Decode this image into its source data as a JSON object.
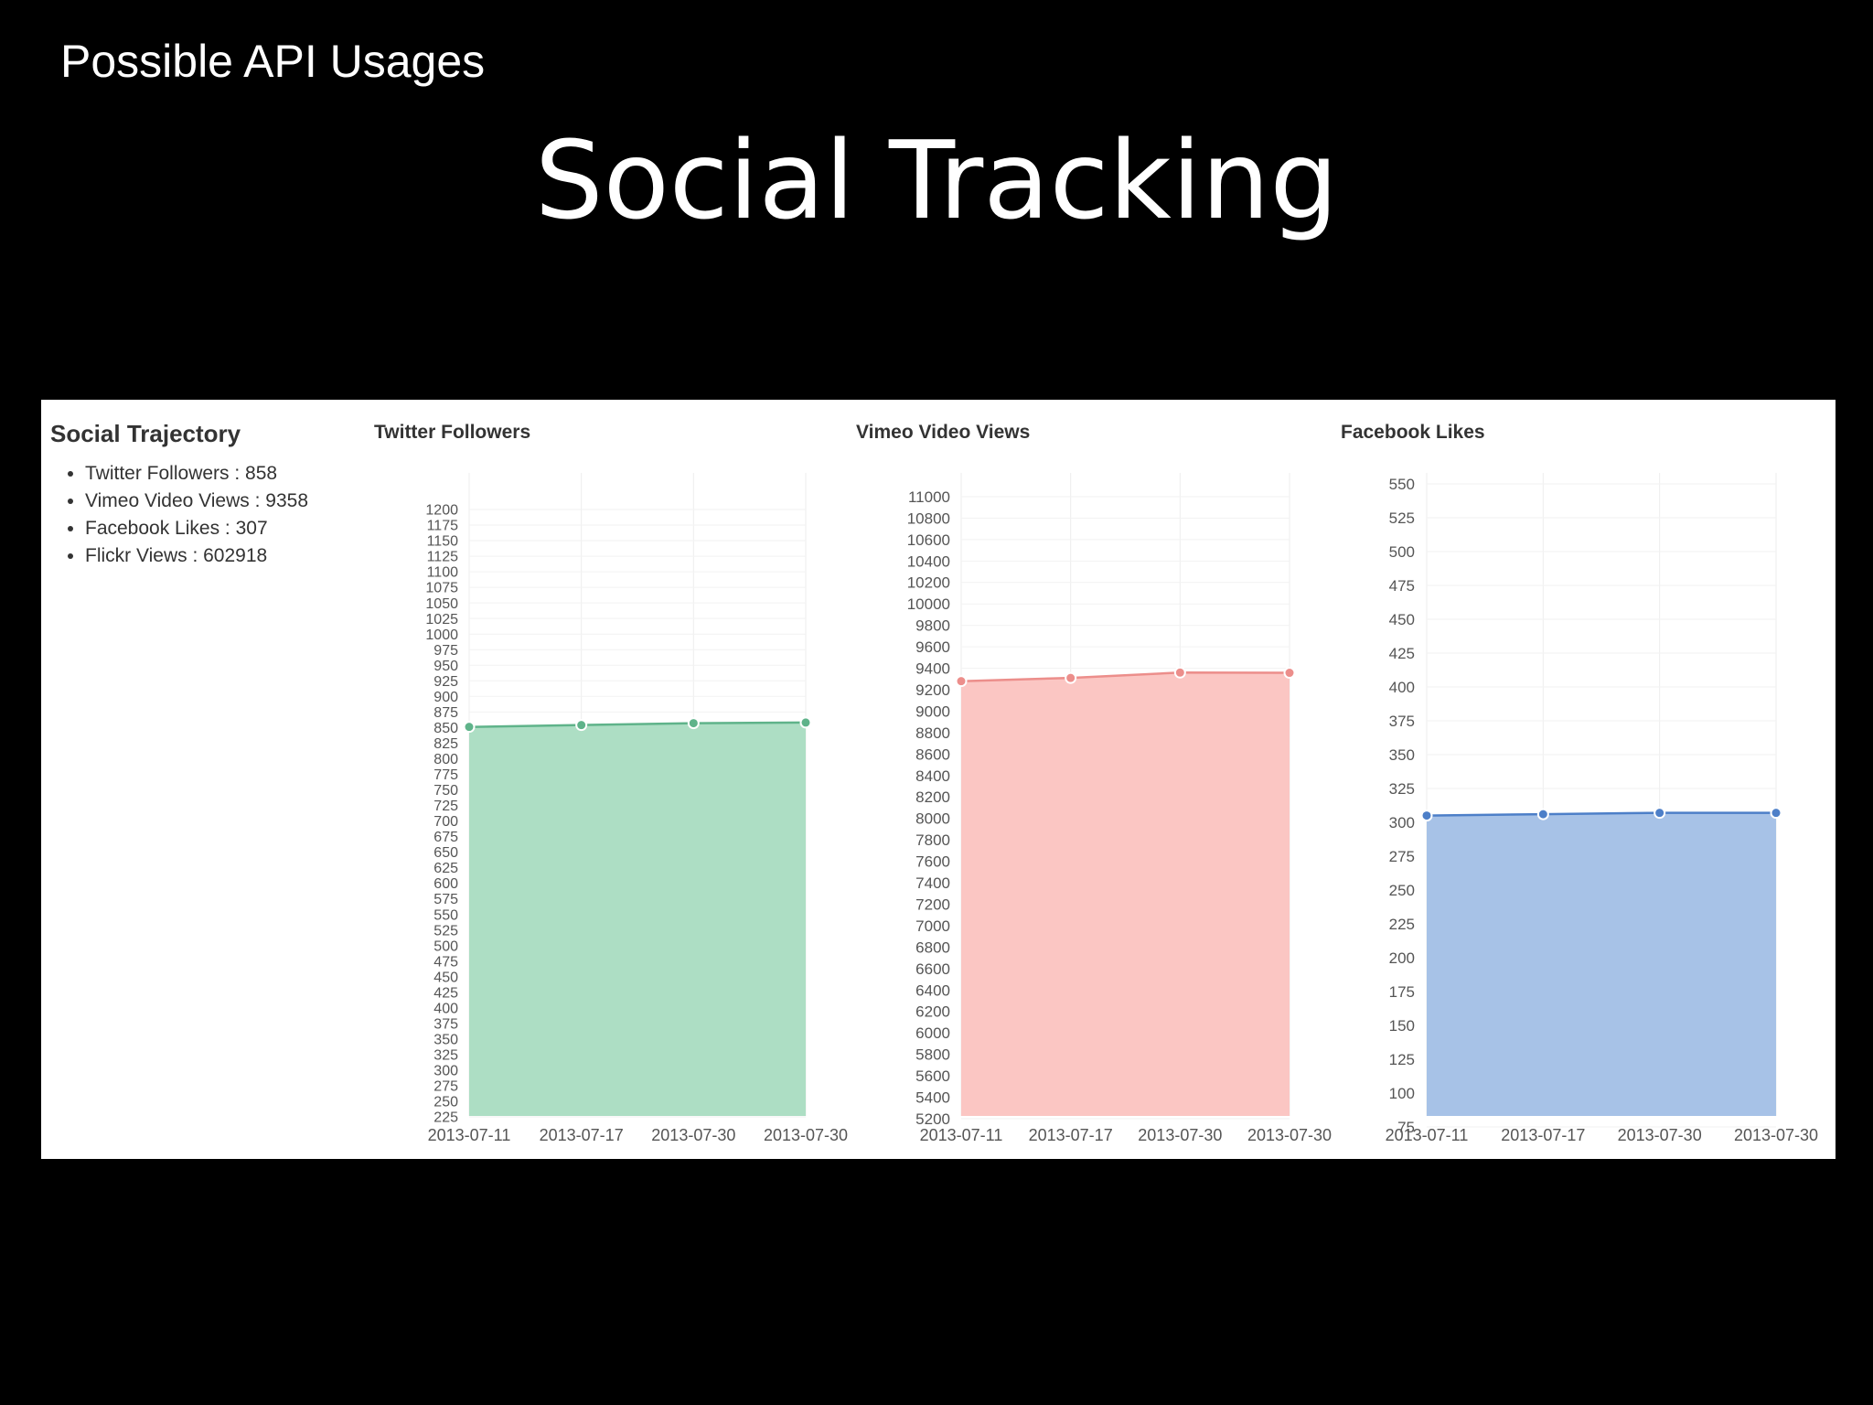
{
  "slide": {
    "subtitle": "Possible API Usages",
    "title": "Social Tracking"
  },
  "trajectory": {
    "title": "Social Trajectory",
    "items": [
      {
        "label": "Twitter Followers : 858"
      },
      {
        "label": "Vimeo Video Views : 9358"
      },
      {
        "label": "Facebook Likes : 307"
      },
      {
        "label": "Flickr Views : 602918"
      }
    ]
  },
  "colors": {
    "twitter_fill": "#a9dcc1",
    "twitter_line": "#5fb38a",
    "vimeo_fill": "#fbc3c0",
    "vimeo_line": "#ec8e8b",
    "facebook_fill": "#a2bfe6",
    "facebook_line": "#4d7fc8"
  },
  "chart_data": [
    {
      "type": "area",
      "title": "Twitter Followers",
      "x": [
        "2013-07-11",
        "2013-07-17",
        "2013-07-30",
        "2013-07-30"
      ],
      "series": [
        {
          "values": [
            851,
            854,
            857,
            858
          ]
        }
      ],
      "yticks": [
        225,
        250,
        275,
        300,
        325,
        350,
        375,
        400,
        425,
        450,
        475,
        500,
        525,
        550,
        575,
        600,
        625,
        650,
        675,
        700,
        725,
        750,
        775,
        800,
        825,
        850,
        875,
        900,
        925,
        950,
        975,
        1000,
        1025,
        1050,
        1075,
        1100,
        1125,
        1150,
        1175,
        1200
      ],
      "grid": true
    },
    {
      "type": "area",
      "title": "Vimeo Video Views",
      "x": [
        "2013-07-11",
        "2013-07-17",
        "2013-07-30",
        "2013-07-30"
      ],
      "series": [
        {
          "values": [
            9280,
            9310,
            9360,
            9358
          ]
        }
      ],
      "yticks": [
        5200,
        5400,
        5600,
        5800,
        6000,
        6200,
        6400,
        6600,
        6800,
        7000,
        7200,
        7400,
        7600,
        7800,
        8000,
        8200,
        8400,
        8600,
        8800,
        9000,
        9200,
        9400,
        9600,
        9800,
        10000,
        10200,
        10400,
        10600,
        10800,
        11000
      ],
      "grid": true
    },
    {
      "type": "area",
      "title": "Facebook Likes",
      "x": [
        "2013-07-11",
        "2013-07-17",
        "2013-07-30",
        "2013-07-30"
      ],
      "series": [
        {
          "values": [
            305,
            306,
            307,
            307
          ]
        }
      ],
      "yticks": [
        75,
        100,
        125,
        150,
        175,
        200,
        225,
        250,
        275,
        300,
        325,
        350,
        375,
        400,
        425,
        450,
        475,
        500,
        525,
        550
      ],
      "grid": true
    }
  ]
}
